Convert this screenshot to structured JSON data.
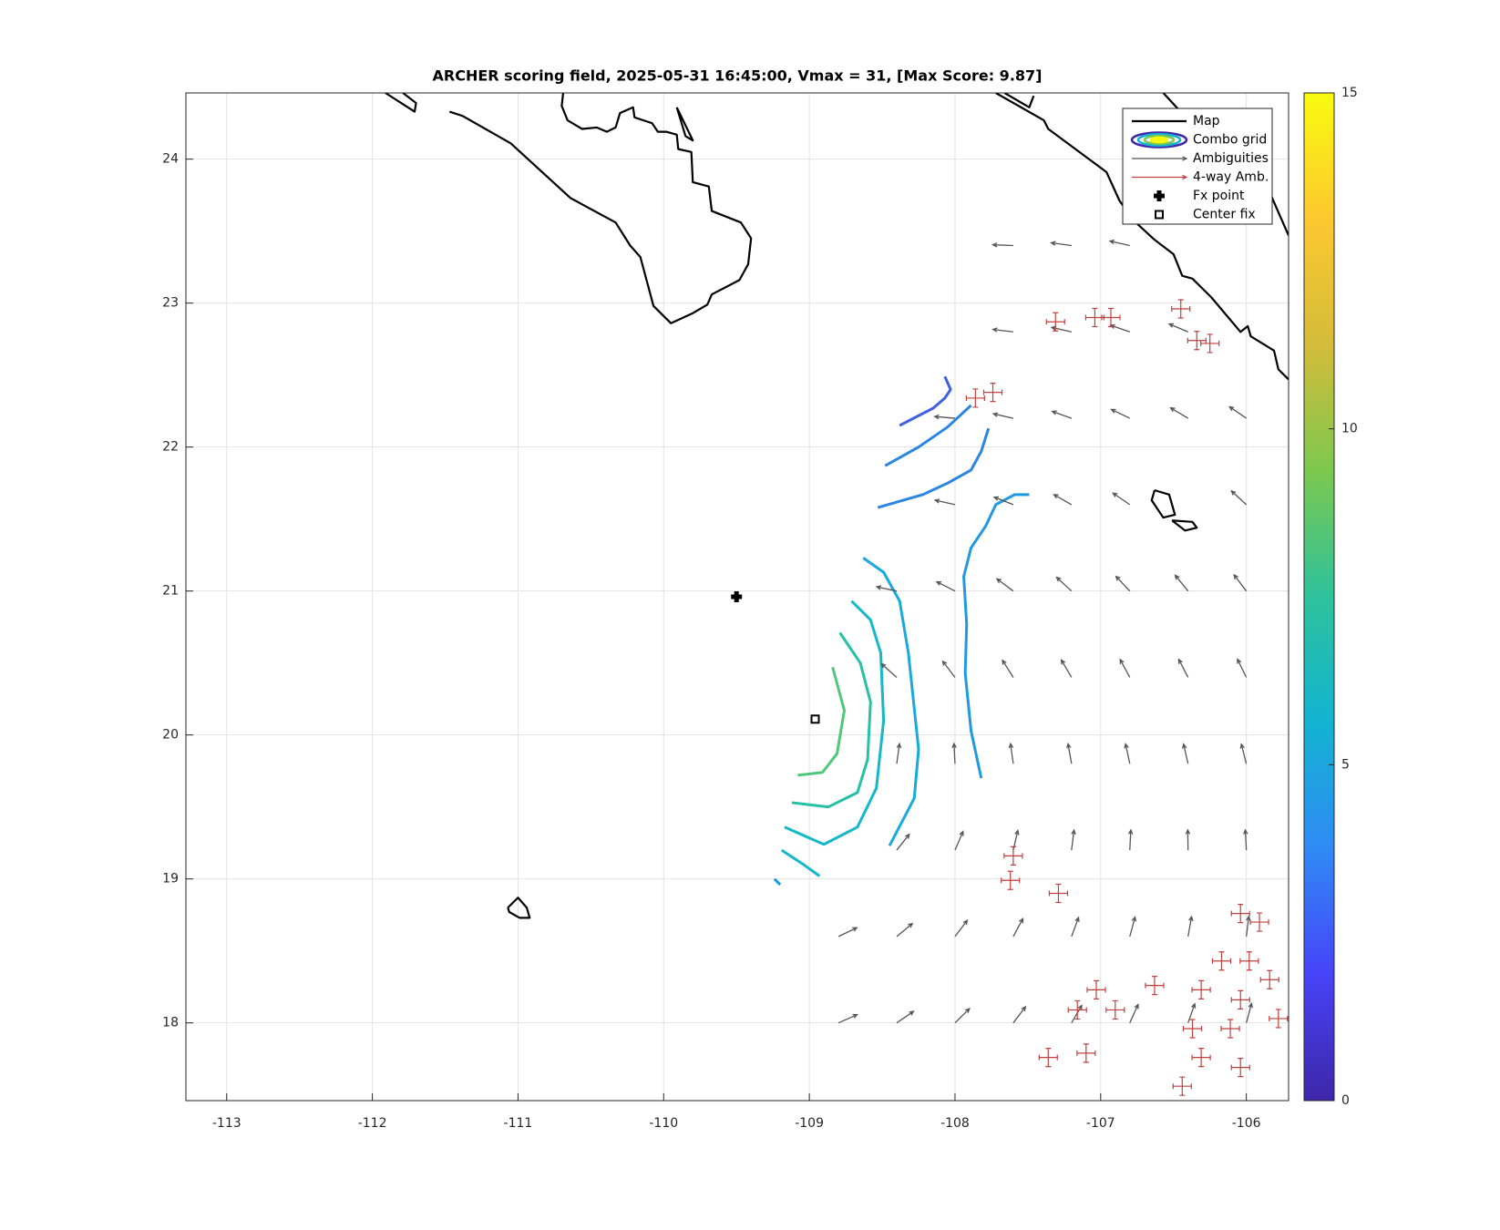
{
  "chart_data": {
    "type": "map",
    "title": "ARCHER scoring field, 2025-05-31 16:45:00, Vmax = 31, [Max Score: 9.87]",
    "xlim": [
      -113.28,
      -105.71
    ],
    "ylim": [
      17.46,
      24.46
    ],
    "xticks": [
      -113,
      -112,
      -111,
      -110,
      -109,
      -108,
      -107,
      -106
    ],
    "yticks": [
      18,
      19,
      20,
      21,
      22,
      23,
      24
    ],
    "grid": true,
    "legend": "northeast",
    "colorbar": {
      "lim": [
        0,
        15
      ],
      "ticks": [
        0,
        5,
        10,
        15
      ],
      "colormap": [
        "#3e26a8",
        "#4743f8",
        "#2f8bf5",
        "#13b3d1",
        "#2ec29c",
        "#7cc84e",
        "#d4bc3a",
        "#fdc830",
        "#f9fb0e"
      ]
    },
    "layers": [
      {
        "type": "coastline",
        "name": "Map",
        "color": "#000000",
        "pieces": [
          {
            "x": [
              -111.47,
              -111.38,
              -111.05,
              -110.64,
              -110.33,
              -110.23,
              -110.16,
              -110.07,
              -109.95,
              -109.8,
              -109.7,
              -109.67,
              -109.48,
              -109.42,
              -109.4,
              -109.47,
              -109.67,
              -109.69,
              -109.8,
              -109.81,
              -109.9,
              -109.91,
              -109.98,
              -110.04,
              -110.08,
              -110.2,
              -110.21,
              -110.3,
              -110.33,
              -110.39,
              -110.46,
              -110.56,
              -110.66,
              -110.7,
              -110.69
            ],
            "y": [
              24.33,
              24.3,
              24.11,
              23.73,
              23.56,
              23.4,
              23.32,
              22.98,
              22.86,
              22.93,
              22.99,
              23.06,
              23.16,
              23.27,
              23.45,
              23.56,
              23.64,
              23.81,
              23.84,
              24.05,
              24.07,
              24.17,
              24.19,
              24.19,
              24.25,
              24.29,
              24.36,
              24.32,
              24.22,
              24.19,
              24.22,
              24.21,
              24.27,
              24.37,
              24.46
            ]
          },
          {
            "x": [
              -111.91,
              -111.71,
              -111.7,
              -111.79
            ],
            "y": [
              24.46,
              24.33,
              24.39,
              24.46
            ]
          },
          {
            "x": [
              -109.91,
              -109.8,
              -109.85,
              -109.91
            ],
            "y": [
              24.36,
              24.13,
              24.16,
              24.36
            ]
          },
          {
            "x": [
              -107.72,
              -107.39,
              -107.36,
              -106.96,
              -106.87,
              -106.77,
              -106.63,
              -106.5,
              -106.44,
              -106.37,
              -106.24,
              -106.04,
              -105.99,
              -105.97,
              -105.81,
              -105.78,
              -105.71
            ],
            "y": [
              24.46,
              24.27,
              24.21,
              23.91,
              23.71,
              23.57,
              23.44,
              23.34,
              23.19,
              23.17,
              23.04,
              22.8,
              22.84,
              22.77,
              22.67,
              22.54,
              22.47
            ]
          },
          {
            "x": [
              -106.57,
              -106.37,
              -106.24,
              -106.11,
              -105.84,
              -105.71
            ],
            "y": [
              24.46,
              24.24,
              24.11,
              24.07,
              23.77,
              23.47
            ]
          },
          {
            "x": [
              -107.66,
              -107.49,
              -107.46
            ],
            "y": [
              24.46,
              24.36,
              24.44
            ]
          },
          {
            "x": [
              -106.63,
              -106.53,
              -106.49,
              -106.57,
              -106.65,
              -106.63
            ],
            "y": [
              21.7,
              21.67,
              21.53,
              21.51,
              21.63,
              21.7
            ]
          },
          {
            "x": [
              -106.51,
              -106.37,
              -106.34,
              -106.42,
              -106.51
            ],
            "y": [
              21.49,
              21.48,
              21.44,
              21.42,
              21.49
            ]
          },
          {
            "x": [
              -111.07,
              -111.0,
              -110.94,
              -110.92,
              -110.99,
              -111.06,
              -111.07
            ],
            "y": [
              18.8,
              18.87,
              18.8,
              18.73,
              18.73,
              18.77,
              18.8
            ]
          }
        ]
      },
      {
        "type": "contour",
        "name": "Combo grid",
        "lines": [
          {
            "color": "#4060e0",
            "x": [
              -108.38,
              -108.15,
              -108.07,
              -108.03,
              -108.07
            ],
            "y": [
              22.15,
              22.27,
              22.34,
              22.4,
              22.49
            ]
          },
          {
            "color": "#2a86e0",
            "x": [
              -108.48,
              -108.25,
              -108.05,
              -107.89
            ],
            "y": [
              21.87,
              22.0,
              22.14,
              22.29
            ]
          },
          {
            "color": "#2a86e0",
            "x": [
              -108.53,
              -108.22,
              -108.05,
              -107.89,
              -107.82,
              -107.77
            ],
            "y": [
              21.58,
              21.67,
              21.75,
              21.84,
              21.97,
              22.13
            ]
          },
          {
            "color": "#1f9ae0",
            "x": [
              -107.49,
              -107.59,
              -107.72,
              -107.79,
              -107.89,
              -107.94,
              -107.92,
              -107.93,
              -107.89,
              -107.82
            ],
            "y": [
              21.67,
              21.67,
              21.6,
              21.45,
              21.3,
              21.1,
              20.77,
              20.43,
              20.03,
              19.7
            ]
          },
          {
            "color": "#1f9ae0",
            "x": [
              -109.24,
              -109.2
            ],
            "y": [
              19.0,
              18.96
            ]
          },
          {
            "color": "#18aadc",
            "x": [
              -108.63,
              -108.49,
              -108.38,
              -108.32,
              -108.25,
              -108.28,
              -108.45
            ],
            "y": [
              21.23,
              21.13,
              20.93,
              20.57,
              19.9,
              19.56,
              19.23
            ]
          },
          {
            "color": "#14b8c8",
            "x": [
              -108.71,
              -108.58,
              -108.51,
              -108.49,
              -108.54,
              -108.67,
              -108.9,
              -109.17
            ],
            "y": [
              20.93,
              20.8,
              20.57,
              20.1,
              19.63,
              19.36,
              19.24,
              19.36
            ]
          },
          {
            "color": "#14b8c8",
            "x": [
              -109.19,
              -109.04,
              -108.93
            ],
            "y": [
              19.2,
              19.1,
              19.02
            ]
          },
          {
            "color": "#25c0a6",
            "x": [
              -108.79,
              -108.65,
              -108.58,
              -108.6,
              -108.67,
              -108.87,
              -109.12
            ],
            "y": [
              20.71,
              20.5,
              20.23,
              19.83,
              19.6,
              19.5,
              19.53
            ]
          },
          {
            "color": "#4dc87c",
            "x": [
              -108.84,
              -108.76,
              -108.81,
              -108.91,
              -109.08
            ],
            "y": [
              20.47,
              20.17,
              19.87,
              19.74,
              19.72
            ]
          }
        ]
      },
      {
        "type": "quiver",
        "name": "Ambiguities",
        "color": "#555555",
        "x": [
          -108.8,
          -108.4,
          -108.0,
          -107.6,
          -107.2,
          -106.8,
          -106.4,
          -106.0,
          -108.8,
          -108.4,
          -108.0,
          -107.6,
          -107.2,
          -106.8,
          -106.4,
          -106.0,
          -108.4,
          -108.0,
          -107.6,
          -107.2,
          -106.8,
          -106.4,
          -106.0,
          -108.4,
          -108.0,
          -107.6,
          -107.2,
          -106.8,
          -106.4,
          -106.0,
          -108.4,
          -108.0,
          -107.6,
          -107.2,
          -106.8,
          -106.4,
          -106.0,
          -108.4,
          -108.0,
          -107.6,
          -107.2,
          -106.8,
          -106.4,
          -106.0,
          -108.0,
          -107.6,
          -107.2,
          -106.8,
          -106.0,
          -108.0,
          -107.6,
          -107.2,
          -106.8,
          -106.4,
          -106.0,
          -107.6,
          -107.2,
          -106.8,
          -106.4,
          -107.6,
          -107.2,
          -106.8
        ],
        "y": [
          18.0,
          18.0,
          18.0,
          18.0,
          18.0,
          18.0,
          18.0,
          18.0,
          18.6,
          18.6,
          18.6,
          18.6,
          18.6,
          18.6,
          18.6,
          18.6,
          19.2,
          19.2,
          19.2,
          19.2,
          19.2,
          19.2,
          19.2,
          19.8,
          19.8,
          19.8,
          19.8,
          19.8,
          19.8,
          19.8,
          20.4,
          20.4,
          20.4,
          20.4,
          20.4,
          20.4,
          20.4,
          21.0,
          21.0,
          21.0,
          21.0,
          21.0,
          21.0,
          21.0,
          21.6,
          21.6,
          21.6,
          21.6,
          21.6,
          22.2,
          22.2,
          22.2,
          22.2,
          22.2,
          22.2,
          22.8,
          22.8,
          22.8,
          22.8,
          23.4,
          23.4,
          23.4
        ],
        "u": [
          0.128,
          0.115,
          0.099,
          0.084,
          0.07,
          0.057,
          0.046,
          0.036,
          0.126,
          0.107,
          0.084,
          0.066,
          0.048,
          0.036,
          0.024,
          0.017,
          0.086,
          0.055,
          0.031,
          0.017,
          0.007,
          -0.002,
          -0.007,
          0.019,
          -0.007,
          -0.019,
          -0.024,
          -0.029,
          -0.031,
          -0.034,
          -0.104,
          -0.084,
          -0.074,
          -0.07,
          -0.066,
          -0.064,
          -0.061,
          -0.137,
          -0.125,
          -0.112,
          -0.102,
          -0.095,
          -0.088,
          -0.084,
          -0.136,
          -0.13,
          -0.121,
          -0.115,
          -0.102,
          -0.139,
          -0.136,
          -0.132,
          -0.126,
          -0.12,
          -0.115,
          -0.139,
          -0.136,
          -0.132,
          -0.129,
          -0.14,
          -0.139,
          -0.136
        ],
        "v": [
          0.057,
          0.08,
          0.099,
          0.112,
          0.121,
          0.128,
          0.132,
          0.135,
          0.061,
          0.09,
          0.112,
          0.124,
          0.132,
          0.135,
          0.138,
          0.139,
          0.11,
          0.129,
          0.136,
          0.139,
          0.14,
          0.14,
          0.14,
          0.139,
          0.14,
          0.139,
          0.138,
          0.137,
          0.136,
          0.136,
          0.094,
          0.112,
          0.119,
          0.121,
          0.124,
          0.125,
          0.126,
          0.029,
          0.064,
          0.084,
          0.095,
          0.102,
          0.109,
          0.112,
          0.031,
          0.052,
          0.07,
          0.08,
          0.095,
          0.012,
          0.031,
          0.048,
          0.061,
          0.072,
          0.08,
          0.017,
          0.031,
          0.046,
          0.055,
          0.005,
          0.019,
          0.031
        ]
      },
      {
        "type": "cross",
        "name": "4-way Amb.",
        "color": "#c04040",
        "x": [
          -107.31,
          -107.04,
          -106.93,
          -106.45,
          -106.34,
          -106.25,
          -107.74,
          -107.86,
          -107.6,
          -107.62,
          -107.29,
          -106.04,
          -105.91,
          -106.17,
          -105.98,
          -106.31,
          -106.04,
          -105.84,
          -107.03,
          -107.16,
          -106.9,
          -106.37,
          -106.11,
          -106.31,
          -106.04,
          -106.44,
          -107.36,
          -107.1,
          -105.78,
          -106.63
        ],
        "y": [
          22.87,
          22.9,
          22.9,
          22.96,
          22.74,
          22.72,
          22.38,
          22.34,
          19.16,
          18.99,
          18.9,
          18.76,
          18.7,
          18.43,
          18.43,
          18.23,
          18.16,
          18.3,
          18.23,
          18.09,
          18.09,
          17.96,
          17.96,
          17.76,
          17.69,
          17.56,
          17.76,
          17.79,
          18.03,
          18.26
        ]
      },
      {
        "type": "marker",
        "marker": "plus",
        "name": "Fx point",
        "color": "#000000",
        "x": -109.5,
        "y": 20.96
      },
      {
        "type": "marker",
        "marker": "square",
        "name": "Center fix",
        "color": "#000000",
        "x": -108.96,
        "y": 20.11
      }
    ]
  }
}
